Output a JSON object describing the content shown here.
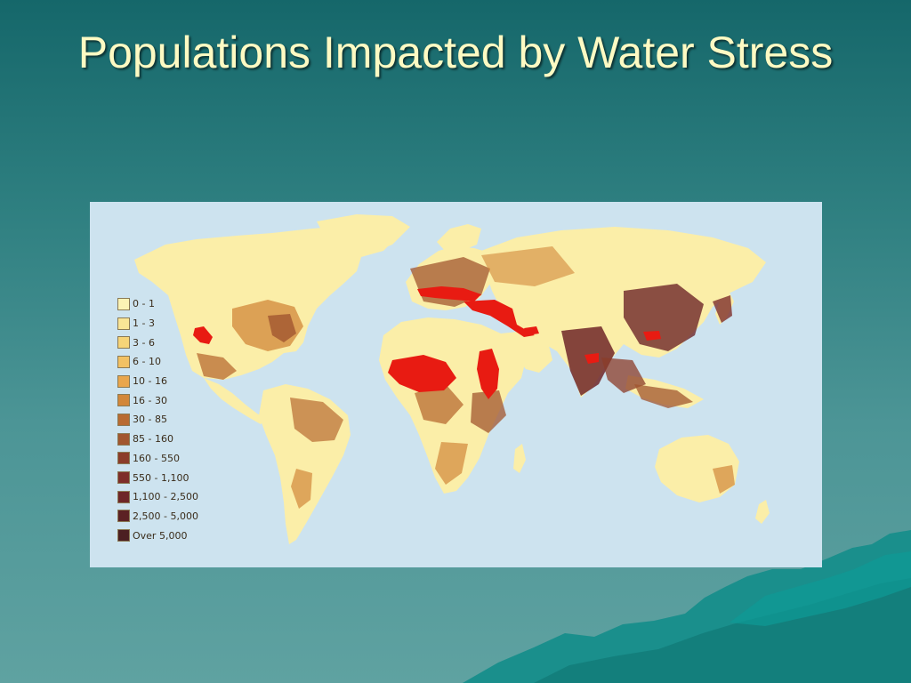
{
  "slide": {
    "title": "Populations Impacted by Water Stress"
  },
  "map": {
    "legend": [
      {
        "label": "0 - 1",
        "color": "#fbf3b5"
      },
      {
        "label": "1 - 3",
        "color": "#f9e596"
      },
      {
        "label": "3 - 6",
        "color": "#f6d478"
      },
      {
        "label": "6 - 10",
        "color": "#f2c163"
      },
      {
        "label": "10 - 16",
        "color": "#e9a64c"
      },
      {
        "label": "16 - 30",
        "color": "#d2873a"
      },
      {
        "label": "30 - 85",
        "color": "#b86b32"
      },
      {
        "label": "85 - 160",
        "color": "#a1562f"
      },
      {
        "label": "160 - 550",
        "color": "#8b3c2a"
      },
      {
        "label": "550 - 1,100",
        "color": "#7e2e2a"
      },
      {
        "label": "1,100 - 2,500",
        "color": "#6e2628"
      },
      {
        "label": "2,500 - 5,000",
        "color": "#5c2224"
      },
      {
        "label": "Over 5,000",
        "color": "#4c1f22"
      }
    ],
    "water_stress_color": "#e81b12",
    "ocean_color": "#cde3ef",
    "land_color": "#fbeea8"
  }
}
